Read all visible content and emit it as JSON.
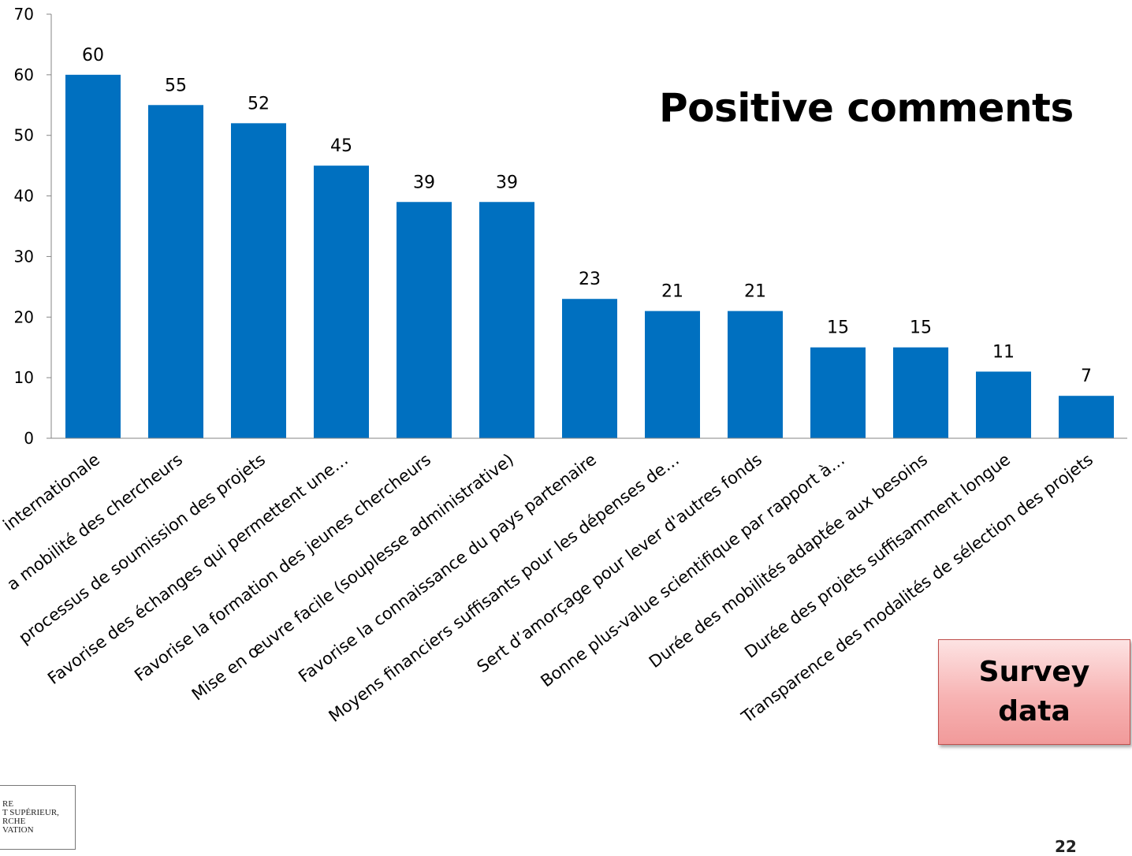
{
  "chart_data": {
    "type": "bar",
    "title": "Positive comments",
    "categories": [
      "internationale",
      "a mobilité des chercheurs",
      "processus de soumission des projets",
      "Favorise des échanges qui permettent une…",
      "Favorise la formation des jeunes chercheurs",
      "Mise en œuvre facile (souplesse administrative)",
      "Favorise la connaissance du pays partenaire",
      "Moyens financiers suffisants pour les dépenses de…",
      "Sert d’amorçage pour lever d'autres fonds",
      "Bonne plus-value scientifique par rapport à…",
      "Durée des mobilités adaptée aux besoins",
      "Durée des projets suffisamment longue",
      "Transparence des modalités de sélection des projets"
    ],
    "values": [
      60,
      55,
      52,
      45,
      39,
      39,
      23,
      21,
      21,
      15,
      15,
      11,
      7
    ],
    "ylim": [
      0,
      70
    ],
    "yticks": [
      0,
      10,
      20,
      30,
      40,
      50,
      60,
      70
    ],
    "xlabel": "",
    "ylabel": "",
    "bar_color": "#0070c0",
    "grid": false,
    "legend": "none"
  },
  "annotation": {
    "line1": "Survey",
    "line2": "data"
  },
  "logo": {
    "text": "RE\nT SUPÉRIEUR,\nRCHE\nVATION"
  },
  "page_number": "22"
}
